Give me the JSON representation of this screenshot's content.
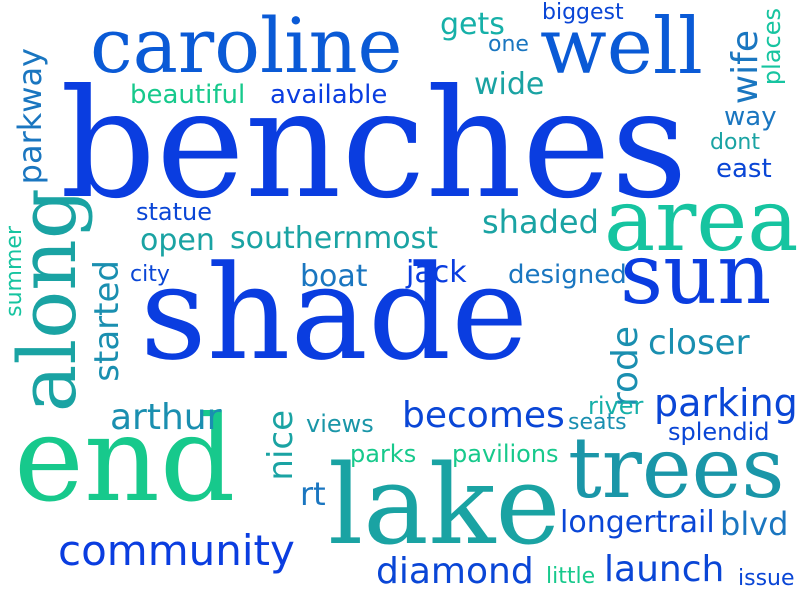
{
  "word_cloud": {
    "words": [
      {
        "text": "benches",
        "color": "#0a3de0"
      },
      {
        "text": "shade",
        "color": "#0a3de0"
      },
      {
        "text": "end",
        "color": "#17c98c"
      },
      {
        "text": "lake",
        "color": "#1aa3a3"
      },
      {
        "text": "caroline",
        "color": "#0a5ad6"
      },
      {
        "text": "well",
        "color": "#0a5ad6"
      },
      {
        "text": "area",
        "color": "#16c4a0"
      },
      {
        "text": "sun",
        "color": "#0a3de0"
      },
      {
        "text": "along",
        "color": "#1aa3a3"
      },
      {
        "text": "trees",
        "color": "#1a96a8"
      },
      {
        "text": "community",
        "color": "#0a3de0"
      },
      {
        "text": "diamond",
        "color": "#0a46d6"
      },
      {
        "text": "becomes",
        "color": "#0a46d6"
      },
      {
        "text": "parking",
        "color": "#0a46d6"
      },
      {
        "text": "arthur",
        "color": "#1a8fb0"
      },
      {
        "text": "closer",
        "color": "#1a8fb0"
      },
      {
        "text": "longertrail",
        "color": "#0a46d6"
      },
      {
        "text": "launch",
        "color": "#0a46d6"
      },
      {
        "text": "blvd",
        "color": "#1a76c0"
      },
      {
        "text": "southernmost",
        "color": "#1aa3a3"
      },
      {
        "text": "open",
        "color": "#1aa3a3"
      },
      {
        "text": "shaded",
        "color": "#1aa3a3"
      },
      {
        "text": "boat",
        "color": "#1a76c0"
      },
      {
        "text": "jack",
        "color": "#0a3de0"
      },
      {
        "text": "designed",
        "color": "#1a76c0"
      },
      {
        "text": "started",
        "color": "#1a8fb0"
      },
      {
        "text": "rode",
        "color": "#1a8fb0"
      },
      {
        "text": "nice",
        "color": "#1aa3a3"
      },
      {
        "text": "rt",
        "color": "#1a76c0"
      },
      {
        "text": "views",
        "color": "#1a96a8"
      },
      {
        "text": "parks",
        "color": "#17c98c"
      },
      {
        "text": "pavilions",
        "color": "#17c98c"
      },
      {
        "text": "river",
        "color": "#16b0a8"
      },
      {
        "text": "seats",
        "color": "#1a8fb0"
      },
      {
        "text": "splendid",
        "color": "#0a46d6"
      },
      {
        "text": "little",
        "color": "#17c98c"
      },
      {
        "text": "issue",
        "color": "#0a46d6"
      },
      {
        "text": "gets",
        "color": "#16b0a8"
      },
      {
        "text": "one",
        "color": "#1a76c0"
      },
      {
        "text": "biggest",
        "color": "#0a46d6"
      },
      {
        "text": "wife",
        "color": "#1a76c0"
      },
      {
        "text": "places",
        "color": "#16c4a0"
      },
      {
        "text": "wide",
        "color": "#1aa3a3"
      },
      {
        "text": "beautiful",
        "color": "#17c98c"
      },
      {
        "text": "available",
        "color": "#0a3de0"
      },
      {
        "text": "parkway",
        "color": "#1a76c0"
      },
      {
        "text": "way",
        "color": "#1a76c0"
      },
      {
        "text": "dont",
        "color": "#1aa3a3"
      },
      {
        "text": "east",
        "color": "#0a46d6"
      },
      {
        "text": "statue",
        "color": "#0a46d6"
      },
      {
        "text": "city",
        "color": "#0a46d6"
      },
      {
        "text": "summer",
        "color": "#16c4a0"
      }
    ]
  }
}
